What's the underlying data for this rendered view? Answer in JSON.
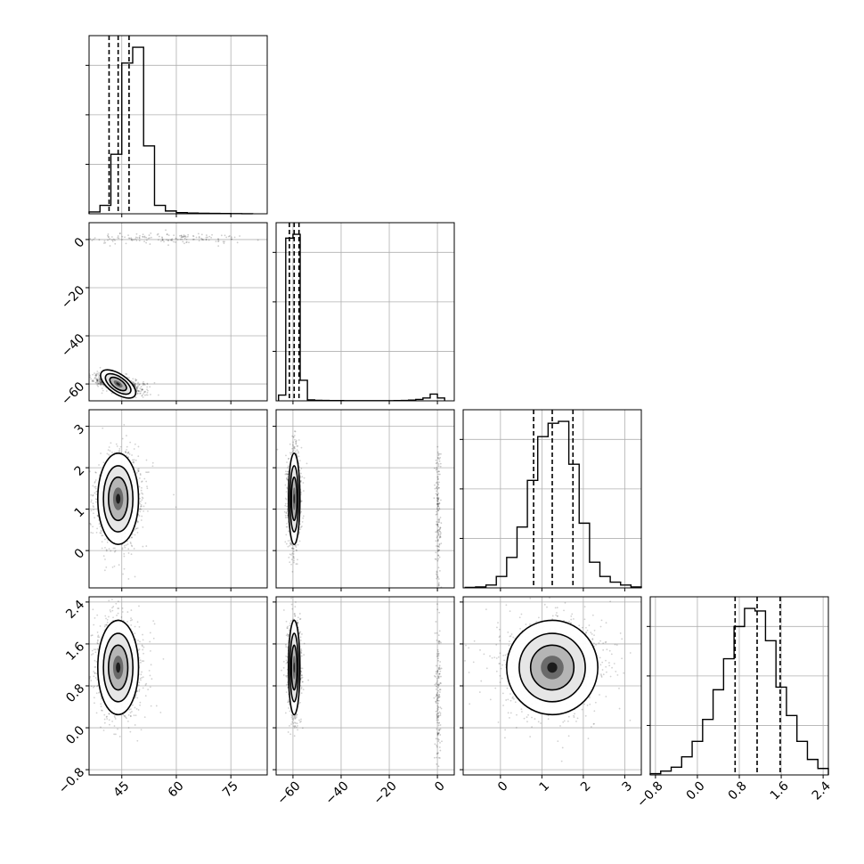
{
  "chart_data": {
    "type": "corner",
    "grid": true,
    "parameters": 4,
    "axes": [
      {
        "range": [
          36,
          85
        ],
        "ticks": [
          45,
          60,
          75
        ],
        "tick_labels": [
          "45",
          "60",
          "75"
        ]
      },
      {
        "range": [
          -67,
          7
        ],
        "ticks": [
          -60,
          -40,
          -20,
          0
        ],
        "tick_labels": [
          "−60",
          "−40",
          "−20",
          "0"
        ]
      },
      {
        "range": [
          -0.9,
          3.4
        ],
        "ticks": [
          0,
          1,
          2,
          3
        ],
        "tick_labels": [
          "0",
          "1",
          "2",
          "3"
        ]
      },
      {
        "range": [
          -0.9,
          2.5
        ],
        "ticks": [
          -0.8,
          0.0,
          0.8,
          1.6,
          2.4
        ],
        "tick_labels": [
          "−0.8",
          "0.0",
          "0.8",
          "1.6",
          "2.4"
        ]
      }
    ],
    "histograms": [
      {
        "bins": [
          36.0,
          39.0,
          42.0,
          45.0,
          48.0,
          51.0,
          54.0,
          57.0,
          60.0,
          63.0,
          66.0,
          69.0,
          72.0,
          75.0,
          78.0,
          81.0
        ],
        "counts": [
          40,
          180,
          1280,
          3240,
          3580,
          1460,
          180,
          60,
          25,
          15,
          10,
          8,
          6,
          3,
          2
        ],
        "quantiles": [
          41.5,
          44.0,
          47.0
        ]
      },
      {
        "bins": [
          -66,
          -63,
          -60,
          -57,
          -54,
          -51,
          -48,
          -45,
          -42,
          -39,
          -36,
          -33,
          -30,
          -27,
          -24,
          -21,
          -18,
          -15,
          -12,
          -9,
          -6,
          -3,
          0,
          3
        ],
        "counts": [
          120,
          3400,
          3480,
          430,
          20,
          10,
          8,
          6,
          5,
          4,
          4,
          3,
          3,
          3,
          3,
          4,
          5,
          8,
          15,
          30,
          60,
          140,
          60
        ],
        "quantiles": [
          -61.5,
          -59.5,
          -57.5
        ]
      },
      {
        "bins": [
          -0.85,
          -0.6,
          -0.35,
          -0.1,
          0.15,
          0.4,
          0.65,
          0.9,
          1.15,
          1.4,
          1.65,
          1.9,
          2.15,
          2.4,
          2.65,
          2.9,
          3.15,
          3.4
        ],
        "counts": [
          5,
          10,
          30,
          120,
          320,
          640,
          1130,
          1590,
          1730,
          1750,
          1300,
          680,
          270,
          120,
          60,
          30,
          10
        ],
        "quantiles": [
          0.8,
          1.25,
          1.75
        ]
      },
      {
        "bins": [
          -0.9,
          -0.7,
          -0.5,
          -0.3,
          -0.1,
          0.1,
          0.3,
          0.5,
          0.7,
          0.9,
          1.1,
          1.3,
          1.5,
          1.7,
          1.9,
          2.1,
          2.3,
          2.5
        ],
        "counts": [
          10,
          30,
          60,
          140,
          260,
          430,
          660,
          900,
          1150,
          1290,
          1270,
          1040,
          680,
          460,
          260,
          120,
          50
        ],
        "quantiles": [
          0.72,
          1.14,
          1.58
        ]
      }
    ],
    "pairs": [
      {
        "row": 1,
        "col": 0,
        "center": [
          44,
          -60
        ],
        "spread": [
          2.8,
          2.0
        ],
        "rho": -0.6,
        "extra_clusters": [
          {
            "center": [
              56,
              0.5
            ],
            "spread": [
              12,
              1.2
            ],
            "weight": 0.03
          }
        ]
      },
      {
        "row": 2,
        "col": 0,
        "center": [
          44,
          1.25
        ],
        "spread": [
          2.8,
          0.55
        ],
        "rho": 0.0
      },
      {
        "row": 2,
        "col": 1,
        "center": [
          -59.5,
          1.25
        ],
        "spread": [
          1.2,
          0.55
        ],
        "rho": 0.0,
        "extra_clusters": [
          {
            "center": [
              0.3,
              0.8
            ],
            "spread": [
              0.6,
              1.0
            ],
            "weight": 0.03
          }
        ]
      },
      {
        "row": 3,
        "col": 0,
        "center": [
          44,
          1.15
        ],
        "spread": [
          2.8,
          0.45
        ],
        "rho": 0.0
      },
      {
        "row": 3,
        "col": 1,
        "center": [
          -59.5,
          1.15
        ],
        "spread": [
          1.2,
          0.45
        ],
        "rho": 0.0,
        "extra_clusters": [
          {
            "center": [
              0.3,
              0.5
            ],
            "spread": [
              0.6,
              0.8
            ],
            "weight": 0.03
          }
        ]
      },
      {
        "row": 3,
        "col": 2,
        "center": [
          1.25,
          1.15
        ],
        "spread": [
          0.55,
          0.45
        ],
        "rho": 0.0
      }
    ]
  }
}
